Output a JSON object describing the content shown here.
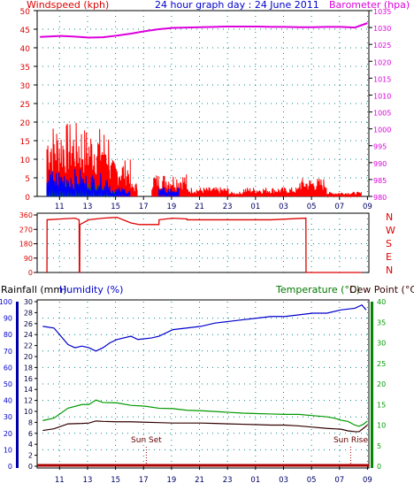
{
  "title": "24 hour graph day : 24 June 2011",
  "colors": {
    "wind_label": "#dd0000",
    "baro": "#dd00dd",
    "wind_gust": "#ff0000",
    "wind_avg": "#0000ff",
    "wind_green": "#008800",
    "direction": "#dd0000",
    "humidity": "#0000cc",
    "temperature": "#009900",
    "dewpoint": "#330000",
    "rain_axis": "#0000aa",
    "grid": "#008888"
  },
  "chart_data": [
    {
      "type": "line",
      "title": "24 hour graph day : 24 June 2011",
      "left_label": "Windspeed (kph)",
      "right_label": "Barometer (hpa)",
      "x_ticks": [
        "11",
        "13",
        "15",
        "17",
        "19",
        "21",
        "23",
        "01",
        "03",
        "05",
        "07",
        "09"
      ],
      "y_left_ticks": [
        "0",
        "5",
        "10",
        "15",
        "20",
        "25",
        "30",
        "35",
        "40",
        "45",
        "50"
      ],
      "y_left_range": [
        0,
        50
      ],
      "y_right_ticks": [
        "980",
        "985",
        "990",
        "995",
        "1000",
        "1005",
        "1010",
        "1015",
        "1020",
        "1025",
        "1030",
        "1035"
      ],
      "y_right_range": [
        980,
        1035
      ],
      "barometer_hours": [
        9.5,
        11,
        12,
        13,
        14,
        15,
        16,
        17,
        18,
        19,
        20,
        21,
        22,
        23,
        24,
        25,
        26,
        27,
        28,
        29,
        30,
        31,
        32,
        32.9
      ],
      "barometer_values": [
        1027.2,
        1027.5,
        1027.3,
        1027.0,
        1027.1,
        1027.6,
        1028.2,
        1028.9,
        1029.5,
        1029.9,
        1030.0,
        1030.1,
        1030.2,
        1030.3,
        1030.3,
        1030.3,
        1030.2,
        1030.2,
        1030.1,
        1030.1,
        1030.2,
        1030.2,
        1030.0,
        1031.3
      ],
      "gust_segments": [
        [
          10.0,
          12.5,
          16
        ],
        [
          12.5,
          14.5,
          15
        ],
        [
          14.5,
          16.0,
          8
        ],
        [
          16.0,
          16.5,
          3
        ],
        [
          17.5,
          20.0,
          5
        ],
        [
          20.0,
          21.5,
          2
        ],
        [
          21.5,
          23.0,
          2
        ],
        [
          23.0,
          24.0,
          1
        ],
        [
          24.0,
          28.0,
          2
        ],
        [
          28.0,
          30.0,
          4
        ],
        [
          30.0,
          31.0,
          1
        ],
        [
          31.0,
          32.5,
          1
        ]
      ],
      "avg_segments": [
        [
          10.0,
          12.5,
          6
        ],
        [
          12.5,
          14.5,
          5
        ],
        [
          14.5,
          16.0,
          2
        ],
        [
          18.0,
          19.5,
          2
        ]
      ],
      "green_segments": [
        [
          10.0,
          12.0,
          3
        ],
        [
          12.0,
          14.0,
          3
        ],
        [
          14.0,
          15.0,
          1
        ]
      ]
    },
    {
      "type": "line",
      "y_ticks": [
        "0",
        "90",
        "180",
        "270",
        "360"
      ],
      "y_range": [
        0,
        360
      ],
      "compass_labels": [
        "N",
        "W",
        "S",
        "E",
        "N"
      ],
      "direction_hours": [
        10.0,
        10.01,
        11,
        12,
        12.3,
        12.31,
        12.34,
        12.35,
        13,
        14,
        15,
        16.0,
        16.6,
        17.5,
        18.0,
        18.01,
        19,
        20.0,
        20.01,
        22,
        24,
        26,
        28.5,
        28.51,
        30,
        32.5
      ],
      "direction_values": [
        0,
        330,
        335,
        340,
        330,
        0,
        0,
        300,
        330,
        340,
        345,
        310,
        300,
        300,
        300,
        330,
        340,
        335,
        330,
        330,
        330,
        330,
        340,
        0,
        0,
        0
      ]
    },
    {
      "type": "line",
      "left_label": "Rainfall (mm)",
      "left2_label": "Humidity (%)",
      "right_label": "Temperature (°C)",
      "right2_label": "Dew Point (°C)",
      "x_ticks": [
        "11",
        "13",
        "15",
        "17",
        "19",
        "21",
        "23",
        "01",
        "03",
        "05",
        "07",
        "09"
      ],
      "humidity_ticks": [
        "0",
        "10",
        "20",
        "30",
        "40",
        "50",
        "60",
        "70",
        "80",
        "90",
        "100"
      ],
      "humidity_range": [
        0,
        100
      ],
      "rain_ticks": [
        "0",
        "2",
        "4",
        "6",
        "8",
        "10",
        "12",
        "14",
        "16",
        "18",
        "20",
        "22",
        "24",
        "26",
        "28",
        "30"
      ],
      "rain_range": [
        0,
        30
      ],
      "temp_ticks": [
        "0",
        "5",
        "10",
        "15",
        "20",
        "25",
        "30",
        "35",
        "40"
      ],
      "temp_range": [
        0,
        40
      ],
      "humidity_hours": [
        9.7,
        10.5,
        11.5,
        12.0,
        12.5,
        13.0,
        13.5,
        14.0,
        14.5,
        15.0,
        16.0,
        16.5,
        17.5,
        18.0,
        19.0,
        20.0,
        21.0,
        22.0,
        23.0,
        24.0,
        25.0,
        26.0,
        27.0,
        28.0,
        29.0,
        30.0,
        31.0,
        32.0,
        32.5,
        32.8
      ],
      "humidity_values": [
        85,
        84,
        74,
        72,
        73,
        72,
        70,
        72,
        75,
        77,
        79,
        77,
        78,
        79,
        83,
        84,
        85,
        87,
        88,
        89,
        90,
        91,
        91,
        92,
        93,
        93,
        95,
        96,
        98,
        95
      ],
      "temp_hours": [
        9.7,
        10.5,
        11.5,
        12.5,
        13.0,
        13.5,
        14.0,
        15.0,
        16.0,
        17.0,
        18.0,
        19.0,
        20.0,
        21.0,
        22.0,
        23.0,
        24.0,
        25.0,
        26.0,
        27.0,
        28.0,
        29.0,
        30.0,
        30.5,
        31.0,
        31.5,
        32.0,
        32.3,
        32.6,
        32.9
      ],
      "temp_values": [
        11.1,
        11.7,
        14.1,
        15.0,
        15.0,
        16.1,
        15.5,
        15.4,
        14.8,
        14.6,
        14.1,
        14.0,
        13.6,
        13.5,
        13.3,
        13.1,
        12.9,
        12.8,
        12.7,
        12.6,
        12.6,
        12.3,
        12.0,
        11.7,
        11.2,
        10.9,
        10.0,
        9.7,
        10.2,
        11.0
      ],
      "dew_hours": [
        9.7,
        10.5,
        11.5,
        12.5,
        13.0,
        13.5,
        14.0,
        15.0,
        16.0,
        17.0,
        18.0,
        19.0,
        20.0,
        21.0,
        22.0,
        23.0,
        24.0,
        25.0,
        26.0,
        27.0,
        28.0,
        29.0,
        30.0,
        31.0,
        31.5,
        32.0,
        32.3,
        32.6,
        32.9
      ],
      "dew_values": [
        8.7,
        9.1,
        10.3,
        10.4,
        10.5,
        11.0,
        10.9,
        10.8,
        10.8,
        10.7,
        10.6,
        10.5,
        10.5,
        10.5,
        10.4,
        10.3,
        10.2,
        10.1,
        10.0,
        10.0,
        9.8,
        9.5,
        9.2,
        9.0,
        8.6,
        8.4,
        8.4,
        9.2,
        10.0
      ],
      "rainfall_total": 0,
      "markers": [
        {
          "label": "Sun Set",
          "hour": 17.1
        },
        {
          "label": "Sun Rise",
          "hour": 31.7
        }
      ]
    }
  ]
}
